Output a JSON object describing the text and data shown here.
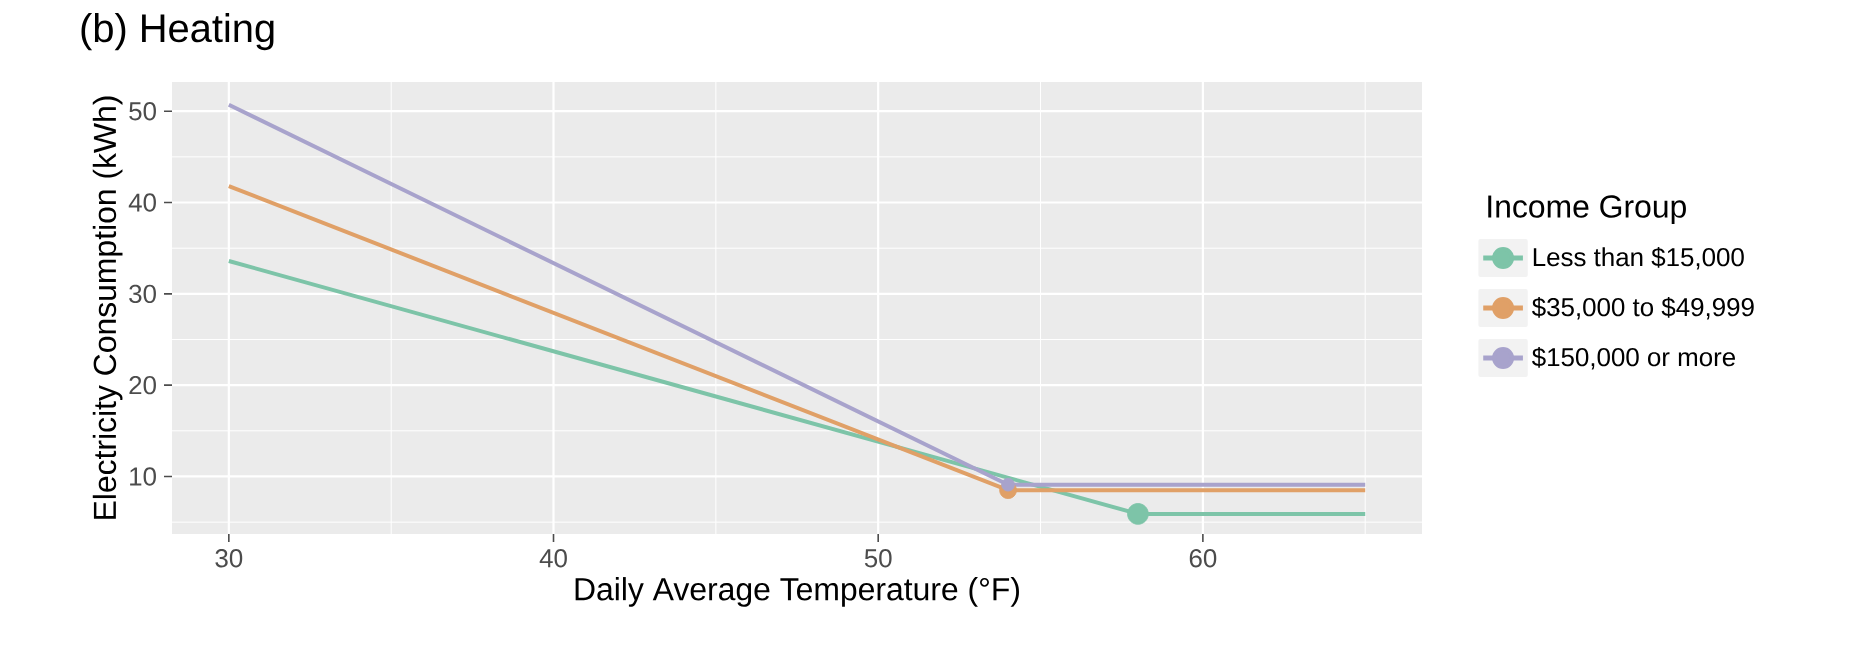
{
  "chart_data": {
    "type": "line",
    "title": "(b) Heating",
    "xlabel": "Daily Average Temperature (°F)",
    "ylabel": "Electricity Consumption (kWh)",
    "legend_title": "Income Group",
    "series": [
      {
        "name": "Less than $15,000",
        "color": "#7dc4a8",
        "x": [
          30,
          58,
          65
        ],
        "values": [
          33.6,
          5.9,
          5.9
        ]
      },
      {
        "name": "$35,000 to $49,999",
        "color": "#e0a067",
        "x": [
          30,
          54,
          65
        ],
        "values": [
          41.8,
          8.5,
          8.5
        ]
      },
      {
        "name": "$150,000 or more",
        "color": "#a8a3cc",
        "x": [
          30,
          54,
          65
        ],
        "values": [
          50.7,
          9.1,
          9.1
        ]
      },
      {
        "type": "scatter",
        "marker": "circle",
        "color": "#7dc4a8",
        "x": [
          58
        ],
        "values": [
          5.9
        ]
      },
      {
        "type": "scatter",
        "marker": "circle",
        "color": "#e0a067",
        "x": [
          54
        ],
        "values": [
          8.5
        ]
      },
      {
        "type": "scatter",
        "marker": "circle",
        "color": "#a8a3cc",
        "x": [
          54
        ],
        "values": [
          9.1
        ]
      }
    ],
    "xlim": [
      28.25,
      66.75
    ],
    "ylim": [
      3.7,
      53.2
    ],
    "xticks": [
      30,
      40,
      50,
      60
    ],
    "yticks": [
      10,
      20,
      30,
      40,
      50
    ],
    "grid": true,
    "legend": "right",
    "line_style": "solid"
  }
}
